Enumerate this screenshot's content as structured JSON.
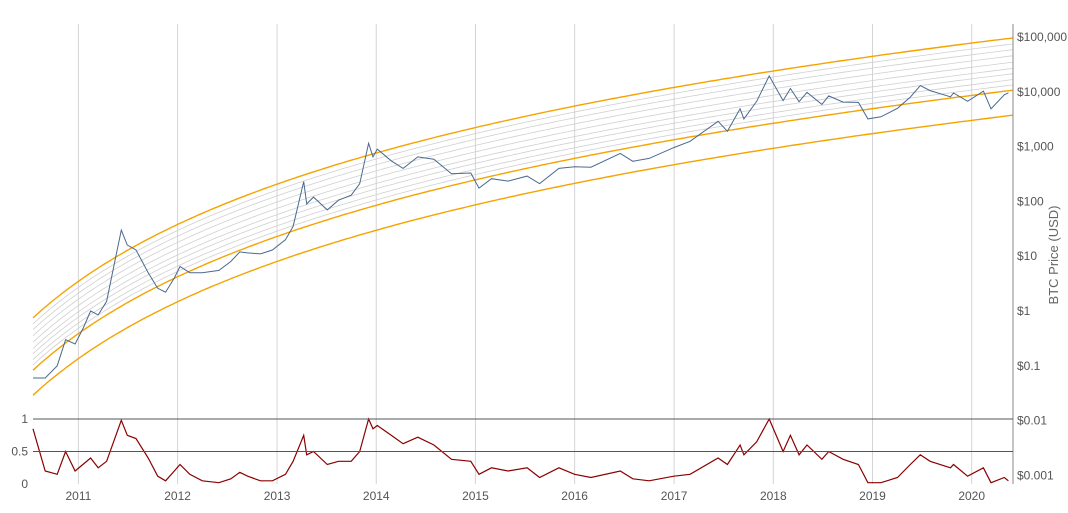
{
  "chart_data": [
    {
      "type": "line",
      "ylabel": "BTC Price (USD)",
      "y_scale": "log",
      "ylim": [
        0.0005,
        100000
      ],
      "xlim": [
        "2010-07-18",
        "2020-06-01"
      ],
      "x_ticks": [
        "2011",
        "2012",
        "2013",
        "2014",
        "2015",
        "2016",
        "2017",
        "2018",
        "2019",
        "2020"
      ],
      "y_ticks": [
        {
          "value": 100000,
          "label": "$100,000"
        },
        {
          "value": 10000,
          "label": "$10,000"
        },
        {
          "value": 1000,
          "label": "$1,000"
        },
        {
          "value": 100,
          "label": "$100"
        },
        {
          "value": 10,
          "label": "$10"
        },
        {
          "value": 1,
          "label": "$1"
        },
        {
          "value": 0.1,
          "label": "$0.1"
        },
        {
          "value": 0.01,
          "label": "$0.01"
        },
        {
          "value": 0.001,
          "label": "$0.001"
        }
      ],
      "grid": "vertical",
      "colors": {
        "price": "#4a6a8f",
        "bands_main": "#f5a300",
        "bands_inner": "#d0d0d0"
      },
      "band_factors": [
        0.28,
        0.8,
        1.0,
        1.25,
        1.6,
        2.0,
        2.6,
        3.4,
        4.4,
        5.6,
        7.2
      ],
      "main_band_factors": [
        0.28,
        0.8,
        7.2
      ],
      "series": [
        {
          "points": [
            [
              "2010-07-18",
              0.06
            ],
            [
              "2010-09-01",
              0.06
            ],
            [
              "2010-10-15",
              0.1
            ],
            [
              "2010-11-15",
              0.3
            ],
            [
              "2010-12-20",
              0.25
            ],
            [
              "2011-01-20",
              0.5
            ],
            [
              "2011-02-15",
              1.0
            ],
            [
              "2011-03-15",
              0.85
            ],
            [
              "2011-04-15",
              1.5
            ],
            [
              "2011-05-15",
              8.0
            ],
            [
              "2011-06-08",
              30
            ],
            [
              "2011-06-30",
              16
            ],
            [
              "2011-08-01",
              13
            ],
            [
              "2011-09-15",
              5
            ],
            [
              "2011-10-20",
              2.6
            ],
            [
              "2011-11-18",
              2.2
            ],
            [
              "2011-12-20",
              4
            ],
            [
              "2012-01-10",
              6.5
            ],
            [
              "2012-02-15",
              5
            ],
            [
              "2012-04-01",
              5
            ],
            [
              "2012-06-01",
              5.5
            ],
            [
              "2012-07-15",
              8
            ],
            [
              "2012-08-17",
              12
            ],
            [
              "2012-09-15",
              11.5
            ],
            [
              "2012-11-01",
              11
            ],
            [
              "2012-12-15",
              13
            ],
            [
              "2013-02-01",
              20
            ],
            [
              "2013-03-01",
              35
            ],
            [
              "2013-04-09",
              230
            ],
            [
              "2013-04-20",
              90
            ],
            [
              "2013-05-15",
              120
            ],
            [
              "2013-07-05",
              70
            ],
            [
              "2013-08-15",
              105
            ],
            [
              "2013-10-01",
              130
            ],
            [
              "2013-11-01",
              210
            ],
            [
              "2013-12-04",
              1150
            ],
            [
              "2013-12-20",
              650
            ],
            [
              "2014-01-05",
              900
            ],
            [
              "2014-02-25",
              550
            ],
            [
              "2014-04-10",
              400
            ],
            [
              "2014-06-03",
              650
            ],
            [
              "2014-08-01",
              590
            ],
            [
              "2014-10-05",
              320
            ],
            [
              "2014-12-15",
              330
            ],
            [
              "2015-01-14",
              175
            ],
            [
              "2015-03-01",
              260
            ],
            [
              "2015-05-01",
              235
            ],
            [
              "2015-07-10",
              290
            ],
            [
              "2015-08-25",
              210
            ],
            [
              "2015-11-04",
              400
            ],
            [
              "2016-01-01",
              430
            ],
            [
              "2016-03-01",
              420
            ],
            [
              "2016-06-17",
              750
            ],
            [
              "2016-08-02",
              540
            ],
            [
              "2016-10-01",
              610
            ],
            [
              "2016-12-31",
              960
            ],
            [
              "2017-03-01",
              1250
            ],
            [
              "2017-06-12",
              2900
            ],
            [
              "2017-07-16",
              1900
            ],
            [
              "2017-09-01",
              4900
            ],
            [
              "2017-09-15",
              3200
            ],
            [
              "2017-11-01",
              6700
            ],
            [
              "2017-12-17",
              19500
            ],
            [
              "2018-02-06",
              6900
            ],
            [
              "2018-03-05",
              11500
            ],
            [
              "2018-04-06",
              6600
            ],
            [
              "2018-05-05",
              9800
            ],
            [
              "2018-06-29",
              5900
            ],
            [
              "2018-07-24",
              8400
            ],
            [
              "2018-09-15",
              6500
            ],
            [
              "2018-11-10",
              6400
            ],
            [
              "2018-12-15",
              3200
            ],
            [
              "2019-02-01",
              3500
            ],
            [
              "2019-04-03",
              5000
            ],
            [
              "2019-05-20",
              8000
            ],
            [
              "2019-06-26",
              13000
            ],
            [
              "2019-08-01",
              10500
            ],
            [
              "2019-10-15",
              8100
            ],
            [
              "2019-10-26",
              9500
            ],
            [
              "2019-12-17",
              6700
            ],
            [
              "2020-02-13",
              10300
            ],
            [
              "2020-03-12",
              4900
            ],
            [
              "2020-04-30",
              8800
            ],
            [
              "2020-05-15",
              9600
            ]
          ]
        }
      ]
    },
    {
      "type": "line",
      "ylim": [
        0,
        1
      ],
      "y_ticks": [
        {
          "value": 0,
          "label": "0"
        },
        {
          "value": 0.5,
          "label": "0.5"
        },
        {
          "value": 1,
          "label": "1"
        }
      ],
      "colors": {
        "line": "#8b0000"
      },
      "series": [
        {
          "points": [
            [
              "2010-07-18",
              0.85
            ],
            [
              "2010-09-01",
              0.2
            ],
            [
              "2010-10-15",
              0.15
            ],
            [
              "2010-11-15",
              0.5
            ],
            [
              "2010-12-20",
              0.2
            ],
            [
              "2011-02-15",
              0.4
            ],
            [
              "2011-03-15",
              0.25
            ],
            [
              "2011-04-15",
              0.35
            ],
            [
              "2011-06-08",
              0.98
            ],
            [
              "2011-06-30",
              0.75
            ],
            [
              "2011-08-01",
              0.7
            ],
            [
              "2011-09-15",
              0.4
            ],
            [
              "2011-10-20",
              0.12
            ],
            [
              "2011-11-18",
              0.05
            ],
            [
              "2011-12-20",
              0.2
            ],
            [
              "2012-01-10",
              0.3
            ],
            [
              "2012-02-15",
              0.15
            ],
            [
              "2012-04-01",
              0.05
            ],
            [
              "2012-06-01",
              0.02
            ],
            [
              "2012-07-15",
              0.08
            ],
            [
              "2012-08-17",
              0.18
            ],
            [
              "2012-09-15",
              0.12
            ],
            [
              "2012-11-01",
              0.05
            ],
            [
              "2012-12-15",
              0.05
            ],
            [
              "2013-02-01",
              0.15
            ],
            [
              "2013-03-01",
              0.35
            ],
            [
              "2013-04-09",
              0.75
            ],
            [
              "2013-04-20",
              0.45
            ],
            [
              "2013-05-15",
              0.5
            ],
            [
              "2013-07-05",
              0.3
            ],
            [
              "2013-08-15",
              0.35
            ],
            [
              "2013-10-01",
              0.35
            ],
            [
              "2013-11-01",
              0.5
            ],
            [
              "2013-12-04",
              1.0
            ],
            [
              "2013-12-20",
              0.85
            ],
            [
              "2014-01-05",
              0.9
            ],
            [
              "2014-02-25",
              0.75
            ],
            [
              "2014-04-10",
              0.62
            ],
            [
              "2014-06-03",
              0.72
            ],
            [
              "2014-08-01",
              0.6
            ],
            [
              "2014-10-05",
              0.38
            ],
            [
              "2014-12-15",
              0.35
            ],
            [
              "2015-01-14",
              0.15
            ],
            [
              "2015-03-01",
              0.25
            ],
            [
              "2015-05-01",
              0.2
            ],
            [
              "2015-07-10",
              0.25
            ],
            [
              "2015-08-25",
              0.1
            ],
            [
              "2015-11-04",
              0.25
            ],
            [
              "2016-01-01",
              0.15
            ],
            [
              "2016-03-01",
              0.1
            ],
            [
              "2016-06-17",
              0.2
            ],
            [
              "2016-08-02",
              0.08
            ],
            [
              "2016-10-01",
              0.05
            ],
            [
              "2016-12-31",
              0.12
            ],
            [
              "2017-03-01",
              0.15
            ],
            [
              "2017-06-12",
              0.4
            ],
            [
              "2017-07-16",
              0.3
            ],
            [
              "2017-09-01",
              0.6
            ],
            [
              "2017-09-15",
              0.45
            ],
            [
              "2017-11-01",
              0.65
            ],
            [
              "2017-12-17",
              1.0
            ],
            [
              "2018-02-06",
              0.5
            ],
            [
              "2018-03-05",
              0.75
            ],
            [
              "2018-04-06",
              0.45
            ],
            [
              "2018-05-05",
              0.6
            ],
            [
              "2018-06-29",
              0.38
            ],
            [
              "2018-07-24",
              0.5
            ],
            [
              "2018-09-15",
              0.38
            ],
            [
              "2018-11-10",
              0.3
            ],
            [
              "2018-12-15",
              0.02
            ],
            [
              "2019-02-01",
              0.02
            ],
            [
              "2019-04-03",
              0.1
            ],
            [
              "2019-05-20",
              0.3
            ],
            [
              "2019-06-26",
              0.45
            ],
            [
              "2019-08-01",
              0.35
            ],
            [
              "2019-10-15",
              0.25
            ],
            [
              "2019-10-26",
              0.3
            ],
            [
              "2019-12-17",
              0.12
            ],
            [
              "2020-02-13",
              0.25
            ],
            [
              "2020-03-12",
              0.02
            ],
            [
              "2020-04-30",
              0.1
            ],
            [
              "2020-05-15",
              0.05
            ]
          ]
        }
      ]
    }
  ]
}
